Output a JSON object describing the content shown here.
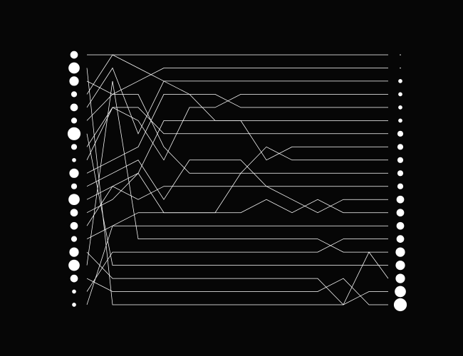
{
  "colors": {
    "background": "#060606",
    "foreground": "#ffffff"
  },
  "chart_data": {
    "type": "bump",
    "rows": 20,
    "x_steps": [
      0,
      1,
      2,
      3,
      4,
      5,
      6,
      7,
      8,
      9,
      10,
      11,
      12
    ],
    "start_sizes": [
      3,
      5,
      4,
      2,
      3,
      2,
      6,
      2,
      1,
      4,
      2,
      5,
      3,
      3,
      2,
      4,
      5,
      3,
      1,
      1
    ],
    "end_sizes": [
      0,
      0,
      1,
      1,
      1,
      1,
      2,
      2,
      2,
      2,
      2,
      3,
      3,
      3,
      3,
      4,
      4,
      4,
      5,
      6
    ],
    "paths": [
      [
        0,
        0,
        0,
        0,
        0,
        0,
        0,
        0,
        0,
        0,
        0,
        0,
        0
      ],
      [
        1,
        19,
        19,
        19,
        19,
        19,
        19,
        19,
        19,
        19,
        19,
        18,
        18
      ],
      [
        2,
        3,
        2,
        1,
        1,
        1,
        1,
        1,
        1,
        1,
        1,
        1,
        1
      ],
      [
        3,
        0,
        1,
        2,
        3,
        3,
        4,
        4,
        4,
        4,
        4,
        4,
        4
      ],
      [
        4,
        1,
        6,
        2,
        2,
        2,
        2,
        2,
        2,
        2,
        2,
        2,
        2
      ],
      [
        5,
        3,
        3,
        7,
        9,
        9,
        9,
        7,
        8,
        8,
        8,
        8,
        8
      ],
      [
        6,
        16,
        16,
        16,
        16,
        16,
        16,
        16,
        16,
        16,
        16,
        16,
        16
      ],
      [
        7,
        4,
        5,
        8,
        4,
        4,
        3,
        3,
        3,
        3,
        3,
        3,
        3
      ],
      [
        8,
        4,
        4,
        6,
        6,
        6,
        6,
        6,
        6,
        6,
        6,
        6,
        6
      ],
      [
        9,
        8,
        7,
        3,
        3,
        5,
        5,
        5,
        5,
        5,
        5,
        5,
        5
      ],
      [
        10,
        9,
        8,
        11,
        8,
        8,
        8,
        10,
        11,
        12,
        11,
        11,
        11
      ],
      [
        11,
        10,
        11,
        10,
        10,
        10,
        10,
        10,
        10,
        10,
        10,
        10,
        10
      ],
      [
        12,
        11,
        9,
        5,
        5,
        5,
        5,
        8,
        7,
        7,
        7,
        7,
        7
      ],
      [
        13,
        10,
        9,
        12,
        12,
        12,
        9,
        9,
        9,
        9,
        9,
        9,
        9
      ],
      [
        14,
        13,
        12,
        12,
        12,
        12,
        12,
        11,
        12,
        11,
        12,
        12,
        12
      ],
      [
        15,
        17,
        17,
        17,
        17,
        17,
        17,
        17,
        17,
        17,
        19,
        15,
        17
      ],
      [
        16,
        2,
        14,
        14,
        14,
        14,
        14,
        14,
        14,
        14,
        15,
        15,
        15
      ],
      [
        17,
        18,
        18,
        18,
        18,
        18,
        18,
        18,
        18,
        18,
        17,
        19,
        19
      ],
      [
        18,
        15,
        15,
        15,
        15,
        15,
        15,
        15,
        15,
        15,
        14,
        14,
        14
      ],
      [
        19,
        13,
        13,
        13,
        13,
        13,
        13,
        13,
        13,
        13,
        13,
        13,
        13
      ]
    ]
  }
}
